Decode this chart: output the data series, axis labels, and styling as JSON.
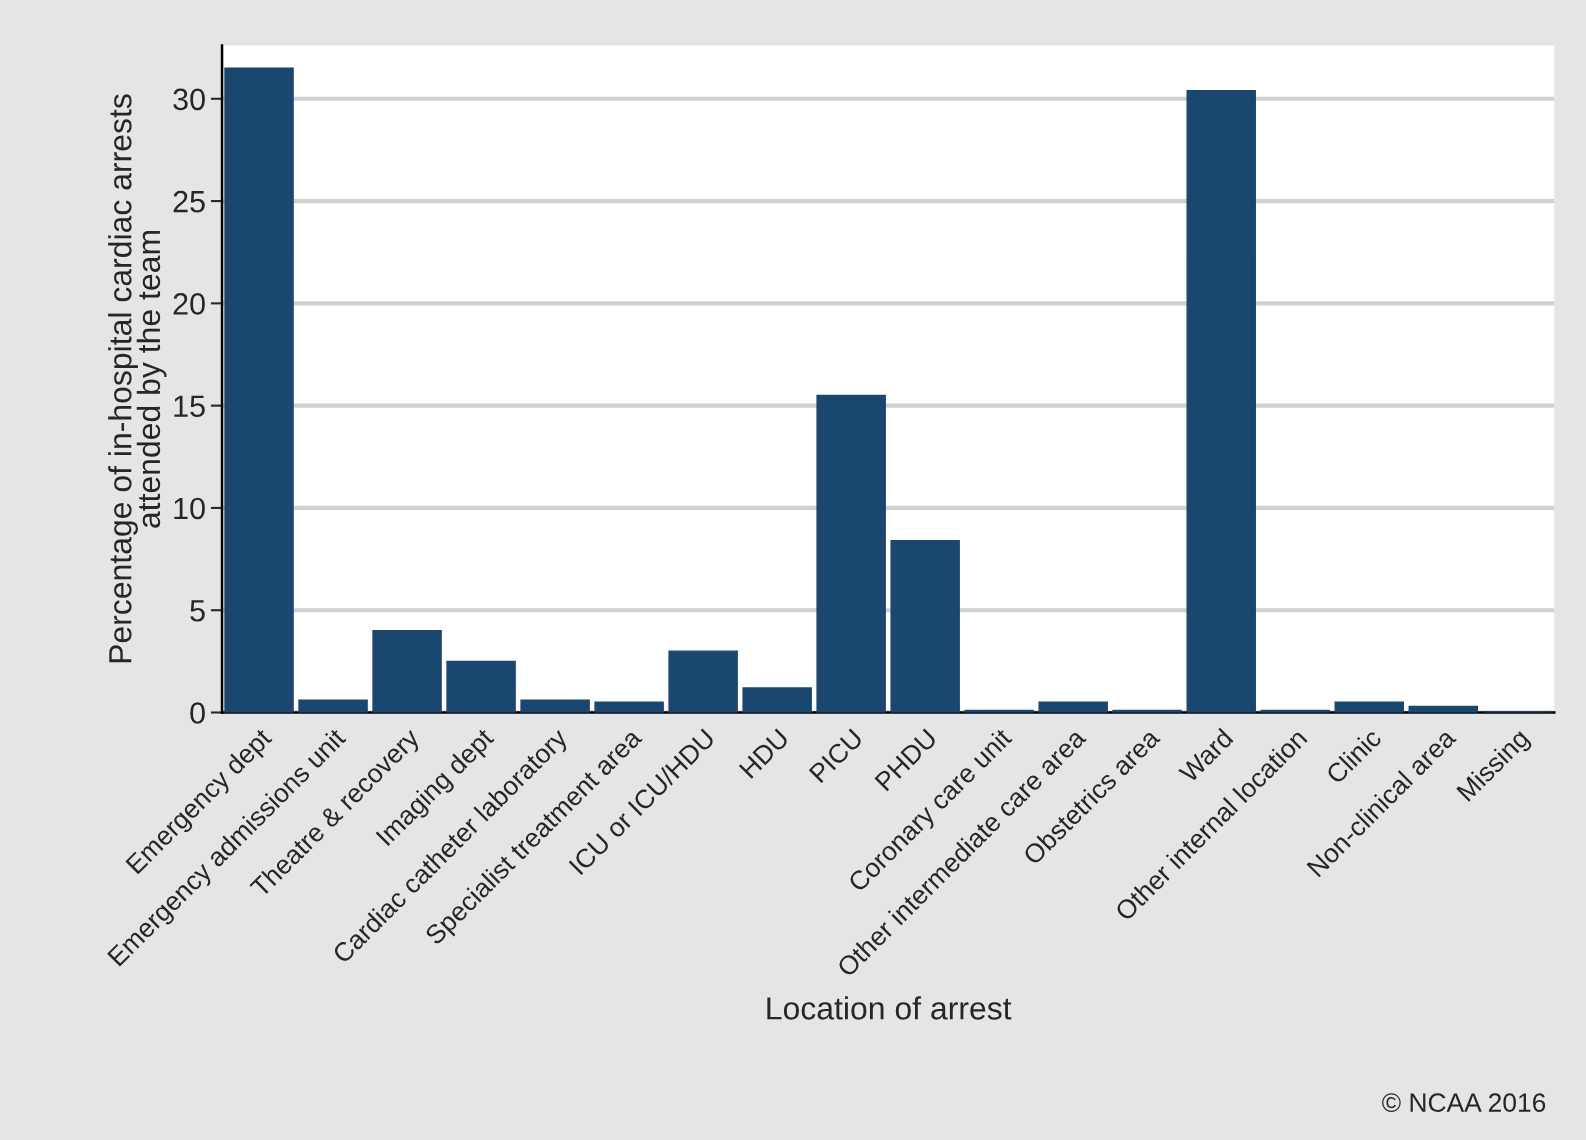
{
  "chart_data": {
    "type": "bar",
    "categories": [
      "Emergency dept",
      "Emergency admissions unit",
      "Theatre & recovery",
      "Imaging dept",
      "Cardiac catheter laboratory",
      "Specialist treatment area",
      "ICU or ICU/HDU",
      "HDU",
      "PICU",
      "PHDU",
      "Coronary care unit",
      "Other intermediate care area",
      "Obstetrics area",
      "Ward",
      "Other internal location",
      "Clinic",
      "Non-clinical area",
      "Missing"
    ],
    "values": [
      31.5,
      0.6,
      4.0,
      2.5,
      0.6,
      0.5,
      3.0,
      1.2,
      15.5,
      8.4,
      0.1,
      0.5,
      0.1,
      30.4,
      0.1,
      0.5,
      0.3,
      0
    ],
    "color": "#1a476f",
    "xlabel": "Location of arrest",
    "ylabel": "Percentage of in-hospital cardiac arrests\nattended by the team",
    "ylim": [
      0,
      32.6
    ],
    "yticks": [
      0,
      5,
      10,
      15,
      20,
      25,
      30
    ],
    "grid": "y",
    "annotations": [
      "© NCAA 2016"
    ]
  }
}
